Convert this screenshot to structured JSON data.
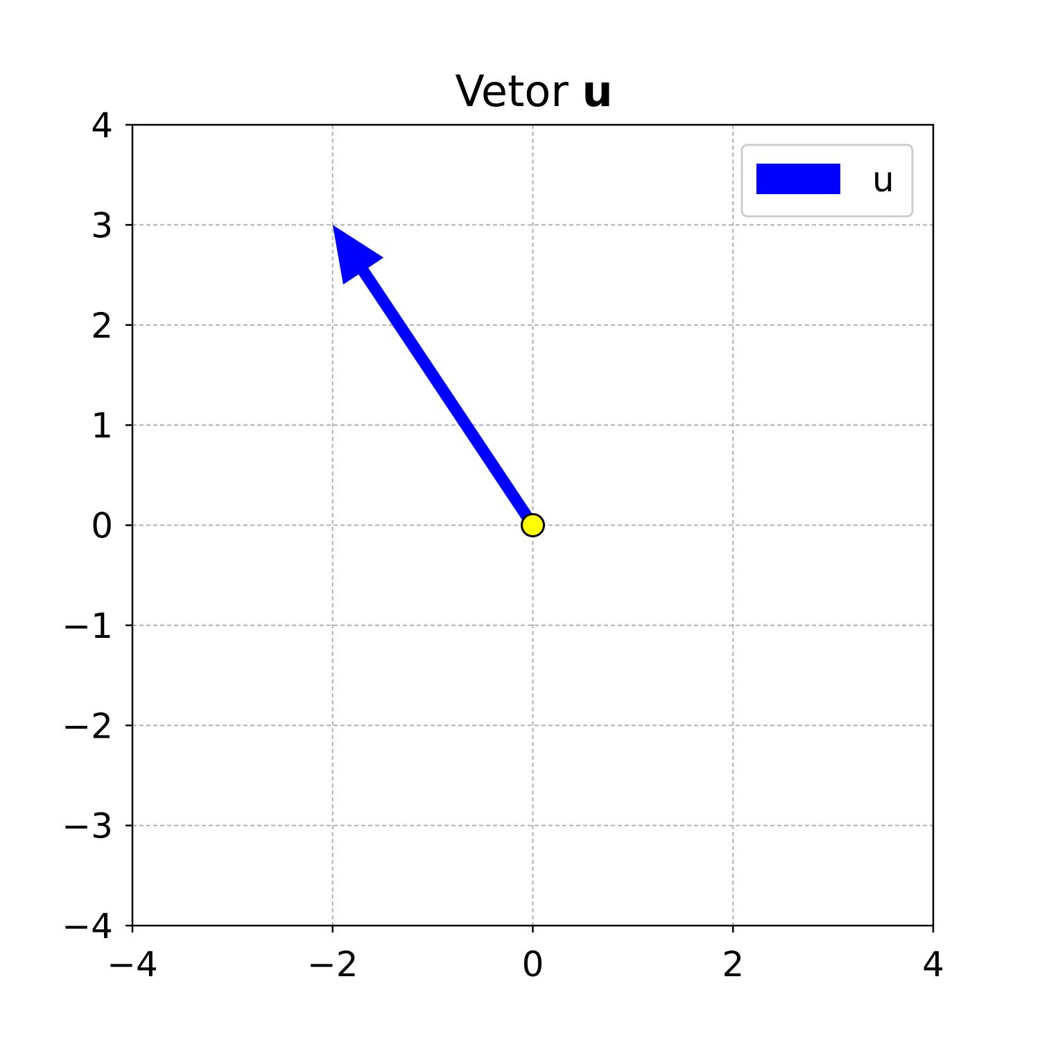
{
  "chart_data": {
    "type": "vector",
    "title_prefix": "Vetor ",
    "title_bold": "u",
    "xlim": [
      -4,
      4
    ],
    "ylim": [
      -4,
      4
    ],
    "xticks": [
      -4,
      -2,
      0,
      2,
      4
    ],
    "yticks": [
      -4,
      -3,
      -2,
      -1,
      0,
      1,
      2,
      3,
      4
    ],
    "grid": true,
    "legend_position": "top-right",
    "vectors": [
      {
        "name": "u",
        "origin": [
          0,
          0
        ],
        "components": [
          -2,
          3
        ],
        "color": "#0000ff"
      }
    ],
    "origin_marker": {
      "x": 0,
      "y": 0,
      "color": "#ffff00"
    }
  }
}
